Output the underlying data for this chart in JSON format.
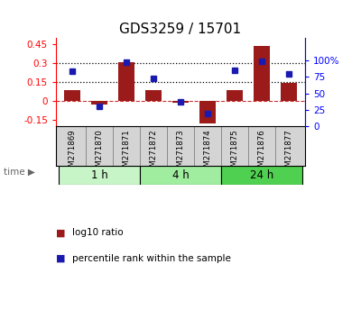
{
  "title": "GDS3259 / 15701",
  "samples": [
    "GSM271869",
    "GSM271870",
    "GSM271871",
    "GSM271872",
    "GSM271873",
    "GSM271874",
    "GSM271875",
    "GSM271876",
    "GSM271877"
  ],
  "log10_ratio": [
    0.09,
    -0.03,
    0.31,
    0.09,
    -0.01,
    -0.18,
    0.09,
    0.44,
    0.145
  ],
  "percentile_rank": [
    83,
    30,
    97,
    72,
    37,
    20,
    85,
    98,
    80
  ],
  "time_groups": [
    {
      "label": "1 h",
      "start": 0,
      "end": 3,
      "color": "#c8f5c8"
    },
    {
      "label": "4 h",
      "start": 3,
      "end": 6,
      "color": "#a0eda0"
    },
    {
      "label": "24 h",
      "start": 6,
      "end": 9,
      "color": "#50d050"
    }
  ],
  "ylim_left": [
    -0.2,
    0.5
  ],
  "ylim_right": [
    0,
    133.33
  ],
  "yticks_left": [
    -0.15,
    0,
    0.15,
    0.3,
    0.45
  ],
  "yticks_right": [
    0,
    25,
    50,
    75,
    100
  ],
  "hlines": [
    0.15,
    0.3
  ],
  "bar_color": "#9b1a1a",
  "scatter_color": "#1a1ab0",
  "zero_line_color": "#cc3333",
  "xlabels_bg": "#d4d4d4",
  "legend_bar_label": "log10 ratio",
  "legend_scatter_label": "percentile rank within the sample",
  "title_fontsize": 11
}
